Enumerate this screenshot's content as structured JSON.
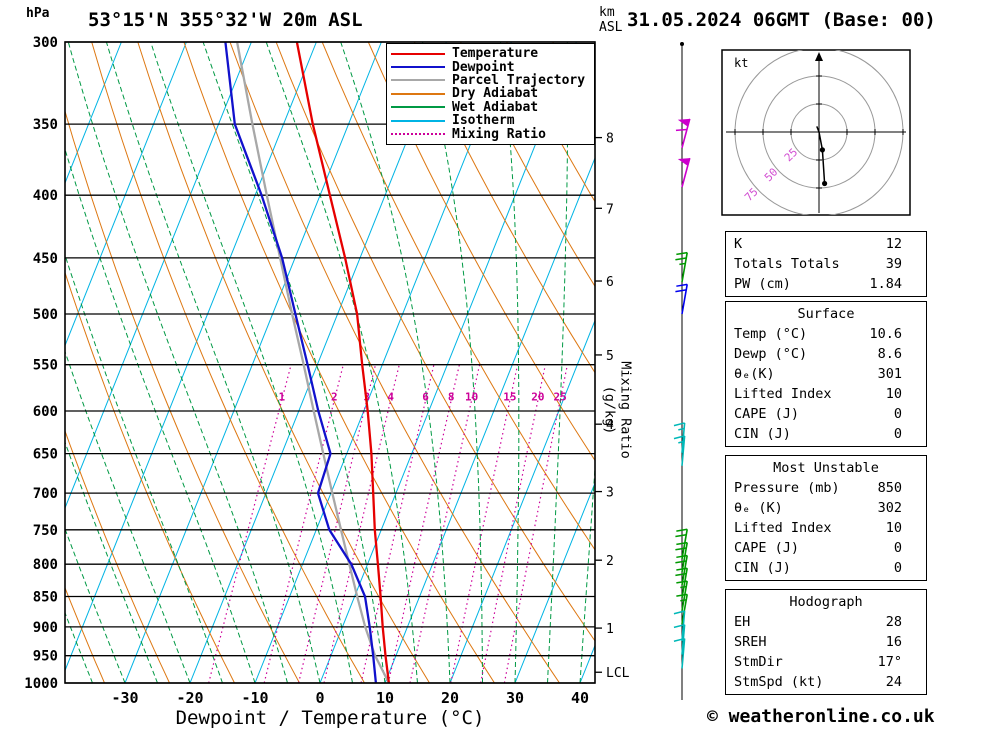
{
  "header": {
    "station_title": "53°15'N 355°32'W 20m ASL",
    "datetime_title": "31.05.2024 06GMT (Base: 00)"
  },
  "axes": {
    "pressure_unit": "hPa",
    "altitude_unit_line1": "km",
    "altitude_unit_line2": "ASL",
    "x_label": "Dewpoint / Temperature (°C)",
    "right_label": "Mixing Ratio (g/kg)",
    "pressure_ticks": [
      300,
      350,
      400,
      450,
      500,
      550,
      600,
      650,
      700,
      750,
      800,
      850,
      900,
      950,
      1000
    ],
    "temp_ticks": [
      -30,
      -20,
      -10,
      0,
      10,
      20,
      30,
      40
    ],
    "km_ticks": [
      {
        "label": "8",
        "p": 359
      },
      {
        "label": "7",
        "p": 410
      },
      {
        "label": "6",
        "p": 470
      },
      {
        "label": "5",
        "p": 540
      },
      {
        "label": "4",
        "p": 615
      },
      {
        "label": "3",
        "p": 698
      },
      {
        "label": "2",
        "p": 794
      },
      {
        "label": "1",
        "p": 902
      }
    ],
    "lcl": {
      "label": "LCL",
      "p": 980
    }
  },
  "legend": [
    {
      "key": "temperature",
      "label": "Temperature",
      "style": "solid"
    },
    {
      "key": "dewpoint",
      "label": "Dewpoint",
      "style": "solid"
    },
    {
      "key": "parcel",
      "label": "Parcel Trajectory",
      "style": "solid"
    },
    {
      "key": "dry_adiabat",
      "label": "Dry Adiabat",
      "style": "solid"
    },
    {
      "key": "wet_adiabat",
      "label": "Wet Adiabat",
      "style": "solid"
    },
    {
      "key": "isotherm",
      "label": "Isotherm",
      "style": "solid"
    },
    {
      "key": "mixing_ratio",
      "label": "Mixing Ratio",
      "style": "dotted"
    }
  ],
  "chart_data": {
    "type": "skew-t-log-p",
    "pressure_unit": "hPa",
    "temperature_unit": "°C",
    "pressure_range": [
      300,
      1000
    ],
    "colors": {
      "temperature": "#e60000",
      "dewpoint": "#1111cc",
      "parcel": "#a8a8a8",
      "dry_adiabat": "#dd7711",
      "wet_adiabat": "#009944",
      "isotherm": "#00b4e4",
      "mixing_ratio": "#cc0099"
    },
    "grid": {
      "isotherm_range_c": [
        -120,
        40
      ],
      "isotherm_step_c": 10,
      "dry_adiabat_theta_k": {
        "min": 240,
        "max": 440,
        "step": 10
      },
      "wet_adiabat_thetaw_c": {
        "min": -55,
        "max": 40,
        "step": 5
      }
    },
    "mixing_ratio_lines": [
      1,
      2,
      3,
      4,
      6,
      8,
      10,
      15,
      20,
      25
    ],
    "temperature_profile": [
      [
        1000,
        10.6
      ],
      [
        950,
        8.4
      ],
      [
        900,
        6.2
      ],
      [
        850,
        4.0
      ],
      [
        800,
        1.6
      ],
      [
        750,
        -1.0
      ],
      [
        700,
        -3.5
      ],
      [
        650,
        -6.2
      ],
      [
        600,
        -9.4
      ],
      [
        550,
        -13.1
      ],
      [
        500,
        -17.0
      ],
      [
        450,
        -22.3
      ],
      [
        400,
        -28.5
      ],
      [
        350,
        -35.5
      ],
      [
        300,
        -43.0
      ]
    ],
    "dewpoint_profile": [
      [
        1000,
        8.6
      ],
      [
        950,
        6.5
      ],
      [
        900,
        4.2
      ],
      [
        850,
        1.6
      ],
      [
        800,
        -2.5
      ],
      [
        750,
        -8.0
      ],
      [
        700,
        -12.0
      ],
      [
        650,
        -12.5
      ],
      [
        600,
        -17.0
      ],
      [
        550,
        -21.5
      ],
      [
        500,
        -26.5
      ],
      [
        450,
        -32.0
      ],
      [
        400,
        -39.0
      ],
      [
        350,
        -47.5
      ],
      [
        300,
        -54.0
      ]
    ],
    "parcel_profile": [
      [
        1000,
        10.6
      ],
      [
        950,
        6.8
      ],
      [
        900,
        3.5
      ],
      [
        850,
        0.4
      ],
      [
        800,
        -2.8
      ],
      [
        750,
        -6.2
      ],
      [
        700,
        -9.8
      ],
      [
        650,
        -13.6
      ],
      [
        600,
        -17.7
      ],
      [
        550,
        -22.1
      ],
      [
        500,
        -27.0
      ],
      [
        450,
        -32.3
      ],
      [
        400,
        -38.2
      ],
      [
        350,
        -44.8
      ],
      [
        300,
        -52.2
      ]
    ],
    "wind_barbs": [
      {
        "p": 366,
        "spd": 60,
        "dir": 15,
        "color": "#cc00cc"
      },
      {
        "p": 394,
        "spd": 50,
        "dir": 15,
        "color": "#cc00cc"
      },
      {
        "p": 471,
        "spd": 25,
        "dir": 10,
        "color": "#009900"
      },
      {
        "p": 500,
        "spd": 20,
        "dir": 10,
        "color": "#0000ee"
      },
      {
        "p": 649,
        "spd": 15,
        "dir": 5,
        "color": "#00b8b8"
      },
      {
        "p": 665,
        "spd": 15,
        "dir": 5,
        "color": "#00b8b8"
      },
      {
        "p": 792,
        "spd": 20,
        "dir": 10,
        "color": "#009900"
      },
      {
        "p": 812,
        "spd": 20,
        "dir": 10,
        "color": "#009900"
      },
      {
        "p": 832,
        "spd": 20,
        "dir": 10,
        "color": "#009900"
      },
      {
        "p": 852,
        "spd": 20,
        "dir": 10,
        "color": "#009900"
      },
      {
        "p": 873,
        "spd": 15,
        "dir": 10,
        "color": "#009900"
      },
      {
        "p": 895,
        "spd": 15,
        "dir": 10,
        "color": "#009900"
      },
      {
        "p": 924,
        "spd": 10,
        "dir": 5,
        "color": "#00b8b8"
      },
      {
        "p": 948,
        "spd": 10,
        "dir": 5,
        "color": "#00b8b8"
      },
      {
        "p": 973,
        "spd": 10,
        "dir": 5,
        "color": "#00b8b8"
      }
    ],
    "hodograph": {
      "unit": "kt",
      "rings": [
        25,
        50,
        75
      ],
      "trace_kt": [
        [
          -2,
          5
        ],
        [
          0,
          0
        ],
        [
          3,
          -16
        ],
        [
          5,
          -46
        ]
      ]
    }
  },
  "panels": {
    "indices": {
      "rows": [
        [
          "K",
          "12"
        ],
        [
          "Totals Totals",
          "39"
        ],
        [
          "PW (cm)",
          "1.84"
        ]
      ]
    },
    "surface": {
      "title": "Surface",
      "rows": [
        [
          "Temp (°C)",
          "10.6"
        ],
        [
          "Dewp (°C)",
          "8.6"
        ],
        [
          "θₑ(K)",
          "301"
        ],
        [
          "Lifted Index",
          "10"
        ],
        [
          "CAPE (J)",
          "0"
        ],
        [
          "CIN (J)",
          "0"
        ]
      ]
    },
    "most_unstable": {
      "title": "Most Unstable",
      "rows": [
        [
          "Pressure (mb)",
          "850"
        ],
        [
          "θₑ (K)",
          "302"
        ],
        [
          "Lifted Index",
          "10"
        ],
        [
          "CAPE (J)",
          "0"
        ],
        [
          "CIN (J)",
          "0"
        ]
      ]
    },
    "hodograph": {
      "title": "Hodograph",
      "rows": [
        [
          "EH",
          "28"
        ],
        [
          "SREH",
          "16"
        ],
        [
          "StmDir",
          "17°"
        ],
        [
          "StmSpd (kt)",
          "24"
        ]
      ]
    }
  },
  "footer": {
    "copyright": "© weatheronline.co.uk"
  }
}
